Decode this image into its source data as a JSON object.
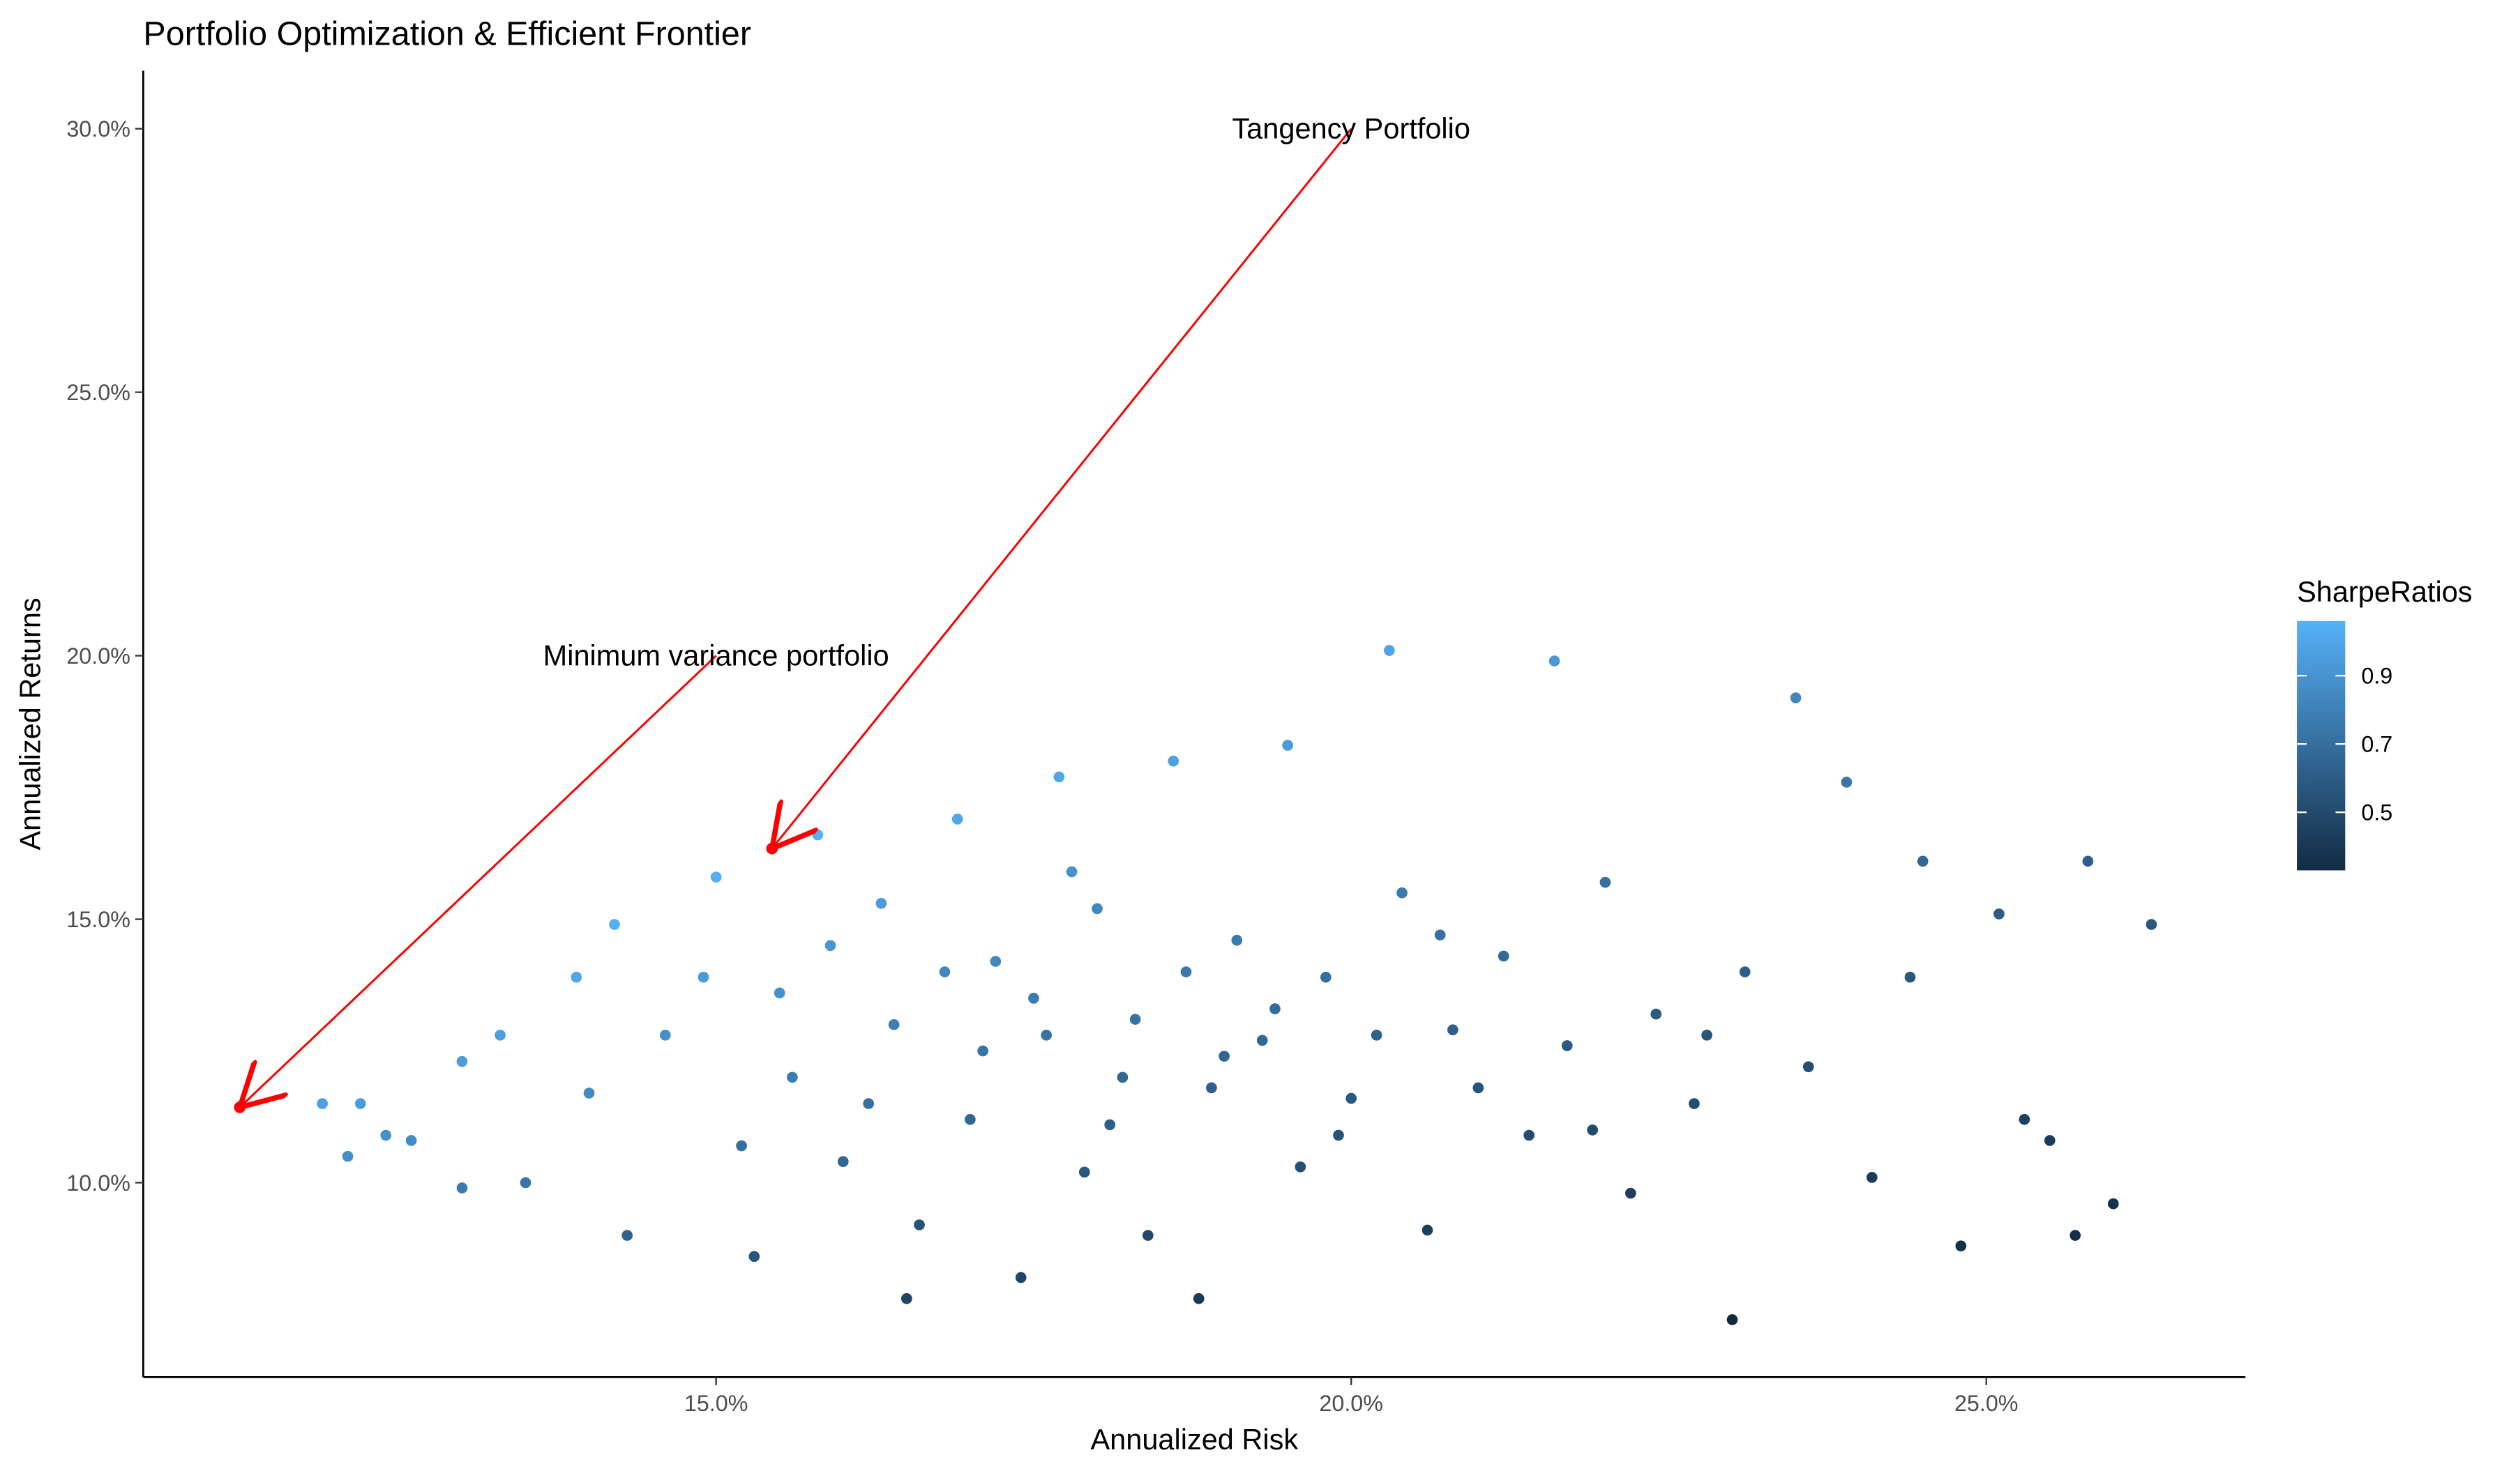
{
  "chart_data": {
    "type": "scatter",
    "title": "Portfolio Optimization & Efficient Frontier",
    "x_label": "Annualized Risk",
    "y_label": "Annualized Returns",
    "xlim": [
      10.49,
      27.04
    ],
    "ylim": [
      6.31,
      31.1
    ],
    "xticks": [
      {
        "value": 15,
        "label": "15.0%"
      },
      {
        "value": 20,
        "label": "20.0%"
      },
      {
        "value": 25,
        "label": "25.0%"
      }
    ],
    "yticks": [
      {
        "value": 10,
        "label": "10.0%"
      },
      {
        "value": 15,
        "label": "15.0%"
      },
      {
        "value": 20,
        "label": "20.0%"
      },
      {
        "value": 25,
        "label": "25.0%"
      },
      {
        "value": 30,
        "label": "30.0%"
      }
    ],
    "grid": false,
    "legend": {
      "title": "SharpeRatios",
      "position": "right",
      "lim": [
        0.33,
        1.06
      ],
      "ticks": [
        0.5,
        0.7,
        0.9
      ],
      "color_low": "#132B43",
      "color_high": "#56B1F7"
    },
    "series": [
      {
        "name": "SharpeRatios",
        "x": [
          11.9,
          12.2,
          12.1,
          12.4,
          12.6,
          13.0,
          13.0,
          13.3,
          13.5,
          13.9,
          14.0,
          14.2,
          14.3,
          14.6,
          14.9,
          15.0,
          15.2,
          15.3,
          15.8,
          15.6,
          15.9,
          16.0,
          16.3,
          16.4,
          16.5,
          16.6,
          16.9,
          17.0,
          17.2,
          17.4,
          17.6,
          17.7,
          17.9,
          18.0,
          18.3,
          18.4,
          18.6,
          18.8,
          18.9,
          19.1,
          19.3,
          19.5,
          19.6,
          19.8,
          20.0,
          20.3,
          20.4,
          20.6,
          20.8,
          21.2,
          21.4,
          21.6,
          21.7,
          22.0,
          22.2,
          22.4,
          22.7,
          23.0,
          23.1,
          23.5,
          23.6,
          23.9,
          24.1,
          24.4,
          24.5,
          24.8,
          25.1,
          25.3,
          25.5,
          25.7,
          25.8,
          26.0,
          26.3,
          17.5,
          18.2,
          18.7,
          19.0,
          19.4,
          18.1,
          17.1,
          16.8,
          20.2,
          20.7,
          21.0,
          19.9,
          17.8,
          16.2,
          22.8,
          21.9,
          15.5
        ],
        "values": [
          11.5,
          11.5,
          10.5,
          10.9,
          10.8,
          12.3,
          9.9,
          12.8,
          10.0,
          13.9,
          11.7,
          14.9,
          9.0,
          12.8,
          13.9,
          15.8,
          10.7,
          8.6,
          16.6,
          12.0,
          14.5,
          10.4,
          15.3,
          13.0,
          7.8,
          9.2,
          16.9,
          11.2,
          14.2,
          8.2,
          12.8,
          17.7,
          10.2,
          15.2,
          13.1,
          9.0,
          18.0,
          7.8,
          11.8,
          14.6,
          12.7,
          18.3,
          10.3,
          13.9,
          11.6,
          20.1,
          15.5,
          9.1,
          12.9,
          14.3,
          10.9,
          19.9,
          12.6,
          15.7,
          9.8,
          13.2,
          11.5,
          7.4,
          14.0,
          19.2,
          12.2,
          17.6,
          10.1,
          13.9,
          16.1,
          8.8,
          15.1,
          11.2,
          10.8,
          9.0,
          16.1,
          9.6,
          14.9,
          13.5,
          12.0,
          14.0,
          12.4,
          13.3,
          11.1,
          12.5,
          14.0,
          12.8,
          14.7,
          11.8,
          10.9,
          15.9,
          11.5,
          12.8,
          11.0,
          13.6
        ],
        "sharpe": [
          0.97,
          0.94,
          0.87,
          0.88,
          0.86,
          0.95,
          0.76,
          0.96,
          0.74,
          1.0,
          0.84,
          1.05,
          0.63,
          0.88,
          0.93,
          1.05,
          0.7,
          0.56,
          1.05,
          0.77,
          0.91,
          0.65,
          0.94,
          0.79,
          0.47,
          0.55,
          1.0,
          0.66,
          0.83,
          0.47,
          0.73,
          1.0,
          0.57,
          0.84,
          0.72,
          0.49,
          0.97,
          0.41,
          0.62,
          0.76,
          0.66,
          0.94,
          0.53,
          0.7,
          0.58,
          0.99,
          0.76,
          0.44,
          0.62,
          0.67,
          0.51,
          0.92,
          0.58,
          0.71,
          0.44,
          0.59,
          0.51,
          0.32,
          0.61,
          0.82,
          0.52,
          0.74,
          0.42,
          0.57,
          0.66,
          0.35,
          0.6,
          0.44,
          0.42,
          0.35,
          0.62,
          0.37,
          0.57,
          0.77,
          0.66,
          0.75,
          0.65,
          0.69,
          0.61,
          0.73,
          0.83,
          0.63,
          0.71,
          0.56,
          0.55,
          0.89,
          0.71,
          0.56,
          0.5,
          0.88
        ]
      }
    ],
    "annotations": [
      {
        "text": "Tangency Portfolio",
        "x": 20.0,
        "y": 30.0,
        "point_x": 15.44,
        "point_y": 16.34,
        "color": "#ff0000"
      },
      {
        "text": "Minimum variance portfolio",
        "x": 15.0,
        "y": 20.0,
        "point_x": 11.25,
        "point_y": 11.43,
        "color": "#ff0000"
      }
    ]
  }
}
